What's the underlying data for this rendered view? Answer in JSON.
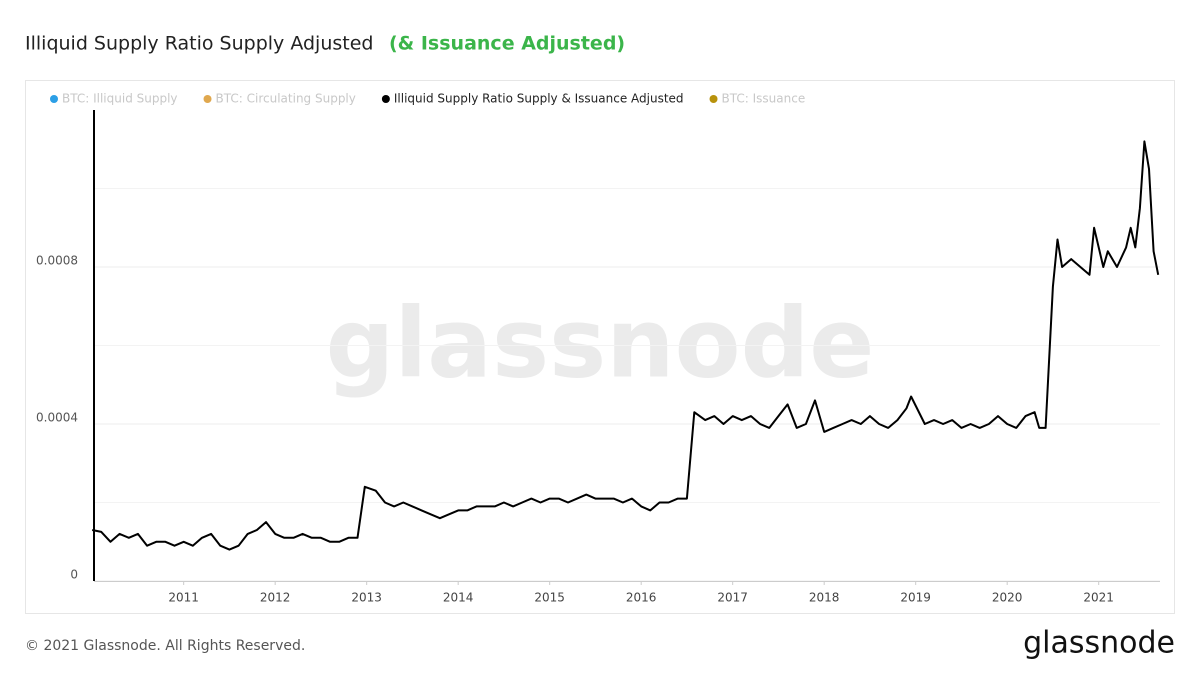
{
  "chart_data": {
    "type": "line",
    "title": "Illiquid Supply Ratio Supply Adjusted",
    "subtitle": "(& Issuance Adjusted)",
    "legend": [
      {
        "name": "BTC: Illiquid Supply",
        "color": "#2c9fe6",
        "hidden": true
      },
      {
        "name": "BTC: Circulating Supply",
        "color": "#e0a84e",
        "hidden": true
      },
      {
        "name": "Illiquid Supply Ratio Supply & Issuance Adjusted",
        "color": "#000000",
        "hidden": false
      },
      {
        "name": "BTC: Issuance",
        "color": "#b8920c",
        "hidden": true
      }
    ],
    "series": [
      {
        "name": "Illiquid Supply Ratio Supply & Issuance Adjusted",
        "color": "#000000",
        "x": [
          2010.0,
          2010.1,
          2010.2,
          2010.3,
          2010.4,
          2010.5,
          2010.6,
          2010.7,
          2010.8,
          2010.9,
          2011.0,
          2011.1,
          2011.2,
          2011.3,
          2011.4,
          2011.5,
          2011.6,
          2011.7,
          2011.8,
          2011.9,
          2012.0,
          2012.1,
          2012.2,
          2012.3,
          2012.4,
          2012.5,
          2012.6,
          2012.7,
          2012.8,
          2012.9,
          2012.98,
          2013.1,
          2013.2,
          2013.3,
          2013.4,
          2013.5,
          2013.6,
          2013.7,
          2013.8,
          2013.9,
          2014.0,
          2014.1,
          2014.2,
          2014.3,
          2014.4,
          2014.5,
          2014.6,
          2014.7,
          2014.8,
          2014.9,
          2015.0,
          2015.1,
          2015.2,
          2015.3,
          2015.4,
          2015.5,
          2015.6,
          2015.7,
          2015.8,
          2015.9,
          2016.0,
          2016.1,
          2016.2,
          2016.3,
          2016.4,
          2016.5,
          2016.58,
          2016.7,
          2016.8,
          2016.9,
          2017.0,
          2017.1,
          2017.2,
          2017.3,
          2017.4,
          2017.5,
          2017.6,
          2017.7,
          2017.8,
          2017.9,
          2018.0,
          2018.1,
          2018.2,
          2018.3,
          2018.4,
          2018.5,
          2018.6,
          2018.7,
          2018.8,
          2018.9,
          2018.95,
          2019.1,
          2019.2,
          2019.3,
          2019.4,
          2019.5,
          2019.6,
          2019.7,
          2019.8,
          2019.9,
          2020.0,
          2020.1,
          2020.2,
          2020.3,
          2020.35,
          2020.42,
          2020.5,
          2020.55,
          2020.6,
          2020.7,
          2020.8,
          2020.9,
          2020.95,
          2021.0,
          2021.05,
          2021.1,
          2021.2,
          2021.3,
          2021.35,
          2021.4,
          2021.45,
          2021.5,
          2021.55,
          2021.6,
          2021.65
        ],
        "values": [
          0.00013,
          0.000125,
          0.0001,
          0.00012,
          0.00011,
          0.00012,
          9e-05,
          0.0001,
          0.0001,
          9e-05,
          0.0001,
          9e-05,
          0.00011,
          0.00012,
          9e-05,
          8e-05,
          9e-05,
          0.00012,
          0.00013,
          0.00015,
          0.00012,
          0.00011,
          0.00011,
          0.00012,
          0.00011,
          0.00011,
          0.0001,
          0.0001,
          0.00011,
          0.00011,
          0.00024,
          0.00023,
          0.0002,
          0.00019,
          0.0002,
          0.00019,
          0.00018,
          0.00017,
          0.00016,
          0.00017,
          0.00018,
          0.00018,
          0.00019,
          0.00019,
          0.00019,
          0.0002,
          0.00019,
          0.0002,
          0.00021,
          0.0002,
          0.00021,
          0.00021,
          0.0002,
          0.00021,
          0.00022,
          0.00021,
          0.00021,
          0.00021,
          0.0002,
          0.00021,
          0.00019,
          0.00018,
          0.0002,
          0.0002,
          0.00021,
          0.00021,
          0.00043,
          0.00041,
          0.00042,
          0.0004,
          0.00042,
          0.00041,
          0.00042,
          0.0004,
          0.00039,
          0.00042,
          0.00045,
          0.00039,
          0.0004,
          0.00046,
          0.00038,
          0.00039,
          0.0004,
          0.00041,
          0.0004,
          0.00042,
          0.0004,
          0.00039,
          0.00041,
          0.00044,
          0.00047,
          0.0004,
          0.00041,
          0.0004,
          0.00041,
          0.00039,
          0.0004,
          0.00039,
          0.0004,
          0.00042,
          0.0004,
          0.00039,
          0.00042,
          0.00043,
          0.00039,
          0.00039,
          0.00075,
          0.00087,
          0.0008,
          0.00082,
          0.0008,
          0.00078,
          0.0009,
          0.00085,
          0.0008,
          0.00084,
          0.0008,
          0.00085,
          0.0009,
          0.00085,
          0.00095,
          0.00112,
          0.00105,
          0.00084,
          0.00078
        ]
      }
    ],
    "xlim": [
      2010.02,
      2021.67
    ],
    "xticks": [
      2011,
      2012,
      2013,
      2014,
      2015,
      2016,
      2017,
      2018,
      2019,
      2020,
      2021
    ],
    "ylim": [
      0,
      0.0012
    ],
    "yticks": [
      0,
      0.0004,
      0.0008
    ],
    "grid": true,
    "watermark": "glassnode",
    "footer": "© 2021 Glassnode. All Rights Reserved.",
    "logo": "glassnode"
  }
}
